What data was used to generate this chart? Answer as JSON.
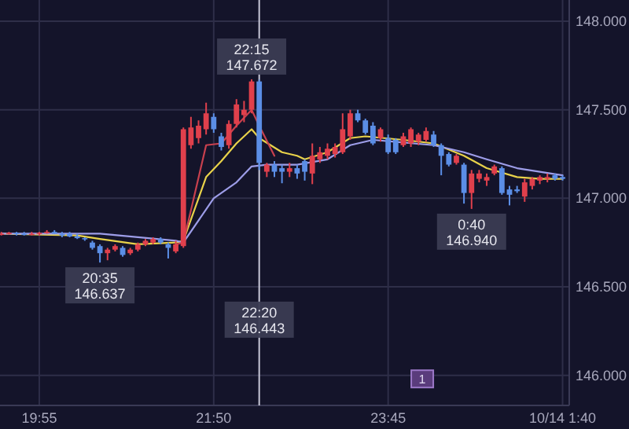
{
  "chart_data": {
    "type": "candlestick",
    "x": [
      19.5,
      19.5833,
      19.6667,
      19.75,
      19.8333,
      19.9167,
      20,
      20.0833,
      20.1667,
      20.25,
      20.3333,
      20.4167,
      20.5,
      20.5833,
      20.6667,
      20.75,
      20.8333,
      20.9167,
      21,
      21.0833,
      21.1667,
      21.25,
      21.3333,
      21.4167,
      21.5,
      21.5833,
      21.6667,
      21.75,
      21.8333,
      21.9167,
      22,
      22.0833,
      22.1667,
      22.25,
      22.3333,
      22.4167,
      22.5,
      22.5833,
      22.6667,
      22.75,
      22.8333,
      22.9167,
      23,
      23.0833,
      23.1667,
      23.25,
      23.3333,
      23.4167,
      23.5,
      23.5833,
      23.6667,
      23.75,
      23.8333,
      23.9167,
      24,
      24.0833,
      24.1667,
      24.25,
      24.3333,
      24.4167,
      24.5,
      24.5833,
      24.6667,
      24.75,
      24.8333,
      24.9167,
      25,
      25.0833,
      25.1667,
      25.25,
      25.3333,
      25.4167,
      25.5,
      25.5833,
      25.6667
    ],
    "ohlc": [
      [
        146.8,
        146.81,
        146.79,
        146.8
      ],
      [
        146.8,
        146.81,
        146.795,
        146.805
      ],
      [
        146.805,
        146.81,
        146.79,
        146.8
      ],
      [
        146.8,
        146.81,
        146.79,
        146.795
      ],
      [
        146.795,
        146.81,
        146.79,
        146.8
      ],
      [
        146.8,
        146.81,
        146.79,
        146.805
      ],
      [
        146.805,
        146.82,
        146.8,
        146.81
      ],
      [
        146.81,
        146.82,
        146.8,
        146.8
      ],
      [
        146.8,
        146.81,
        146.78,
        146.79
      ],
      [
        146.8,
        146.81,
        146.78,
        146.785
      ],
      [
        146.785,
        146.8,
        146.77,
        146.775
      ],
      [
        146.775,
        146.78,
        146.76,
        146.77
      ],
      [
        146.75,
        146.76,
        146.71,
        146.72
      ],
      [
        146.73,
        146.74,
        146.637,
        146.69
      ],
      [
        146.69,
        146.72,
        146.65,
        146.71
      ],
      [
        146.71,
        146.74,
        146.7,
        146.73
      ],
      [
        146.72,
        146.73,
        146.67,
        146.68
      ],
      [
        146.69,
        146.72,
        146.68,
        146.71
      ],
      [
        146.71,
        146.75,
        146.7,
        146.74
      ],
      [
        146.74,
        146.77,
        146.73,
        146.76
      ],
      [
        146.75,
        146.78,
        146.74,
        146.77
      ],
      [
        146.77,
        146.78,
        146.74,
        146.75
      ],
      [
        146.74,
        146.75,
        146.66,
        146.72
      ],
      [
        146.7,
        146.76,
        146.69,
        146.74
      ],
      [
        146.73,
        147.4,
        146.72,
        147.39
      ],
      [
        147.3,
        147.46,
        147.28,
        147.4
      ],
      [
        147.34,
        147.44,
        147.31,
        147.41
      ],
      [
        147.39,
        147.54,
        147.36,
        147.48
      ],
      [
        147.46,
        147.48,
        147.37,
        147.39
      ],
      [
        147.35,
        147.37,
        147.27,
        147.29
      ],
      [
        147.3,
        147.44,
        147.28,
        147.42
      ],
      [
        147.42,
        147.56,
        147.4,
        147.53
      ],
      [
        147.47,
        147.55,
        147.43,
        147.5
      ],
      [
        147.5,
        147.672,
        147.48,
        147.66
      ],
      [
        147.66,
        147.67,
        147.16,
        147.2
      ],
      [
        147.15,
        147.2,
        147.12,
        147.19
      ],
      [
        147.19,
        147.21,
        147.12,
        147.15
      ],
      [
        147.17,
        147.19,
        147.085,
        147.15
      ],
      [
        147.15,
        147.2,
        147.12,
        147.17
      ],
      [
        147.17,
        147.19,
        147.11,
        147.14
      ],
      [
        147.21,
        147.22,
        147.1,
        147.15
      ],
      [
        147.14,
        147.31,
        147.08,
        147.24
      ],
      [
        147.22,
        147.29,
        147.2,
        147.26
      ],
      [
        147.24,
        147.31,
        147.22,
        147.28
      ],
      [
        147.25,
        147.31,
        147.23,
        147.29
      ],
      [
        147.26,
        147.48,
        147.25,
        147.39
      ],
      [
        147.35,
        147.5,
        147.33,
        147.48
      ],
      [
        147.48,
        147.5,
        147.43,
        147.44
      ],
      [
        147.44,
        147.45,
        147.36,
        147.37
      ],
      [
        147.41,
        147.43,
        147.3,
        147.31
      ],
      [
        147.34,
        147.4,
        147.32,
        147.39
      ],
      [
        147.34,
        147.36,
        147.25,
        147.26
      ],
      [
        147.33,
        147.34,
        147.25,
        147.26
      ],
      [
        147.3,
        147.37,
        147.29,
        147.35
      ],
      [
        147.31,
        147.4,
        147.29,
        147.39
      ],
      [
        147.32,
        147.37,
        147.3,
        147.36
      ],
      [
        147.33,
        147.4,
        147.32,
        147.38
      ],
      [
        147.36,
        147.38,
        147.29,
        147.3
      ],
      [
        147.3,
        147.31,
        147.13,
        147.24
      ],
      [
        147.25,
        147.26,
        147.18,
        147.19
      ],
      [
        147.2,
        147.25,
        147.19,
        147.24
      ],
      [
        147.19,
        147.2,
        146.97,
        147.03
      ],
      [
        147.03,
        147.16,
        146.94,
        147.14
      ],
      [
        147.11,
        147.16,
        147.09,
        147.14
      ],
      [
        147.1,
        147.14,
        147.07,
        147.12
      ],
      [
        147.14,
        147.19,
        147.13,
        147.18
      ],
      [
        147.17,
        147.18,
        147.02,
        147.03
      ],
      [
        147.05,
        147.07,
        146.96,
        147.02
      ],
      [
        147.05,
        147.07,
        147.03,
        147.04
      ],
      [
        147.01,
        147.11,
        146.98,
        147.09
      ],
      [
        147.07,
        147.12,
        147.05,
        147.11
      ],
      [
        147.1,
        147.13,
        147.08,
        147.12
      ],
      [
        147.11,
        147.14,
        147.09,
        147.12
      ],
      [
        147.13,
        147.14,
        147.1,
        147.11
      ],
      [
        147.12,
        147.13,
        147.1,
        147.11
      ]
    ],
    "colors": [
      "#e0404c",
      "#e0404c",
      "#5b8ee6",
      "#5b8ee6",
      "#e0404c",
      "#e0404c",
      "#e0404c",
      "#5b8ee6",
      "#5b8ee6",
      "#5b8ee6",
      "#5b8ee6",
      "#5b8ee6",
      "#5b8ee6",
      "#5b8ee6",
      "#e0404c",
      "#e0404c",
      "#5b8ee6",
      "#e0404c",
      "#e0404c",
      "#e0404c",
      "#e0404c",
      "#5b8ee6",
      "#5b8ee6",
      "#e0404c",
      "#e0404c",
      "#e0404c",
      "#e0404c",
      "#e0404c",
      "#5b8ee6",
      "#5b8ee6",
      "#e0404c",
      "#e0404c",
      "#e0404c",
      "#e0404c",
      "#5b8ee6",
      "#e0404c",
      "#5b8ee6",
      "#5b8ee6",
      "#e0404c",
      "#5b8ee6",
      "#5b8ee6",
      "#e0404c",
      "#e0404c",
      "#e0404c",
      "#e0404c",
      "#e0404c",
      "#e0404c",
      "#5b8ee6",
      "#5b8ee6",
      "#5b8ee6",
      "#e0404c",
      "#5b8ee6",
      "#5b8ee6",
      "#e0404c",
      "#e0404c",
      "#e0404c",
      "#e0404c",
      "#5b8ee6",
      "#5b8ee6",
      "#5b8ee6",
      "#e0404c",
      "#5b8ee6",
      "#e0404c",
      "#e0404c",
      "#e0404c",
      "#e0404c",
      "#5b8ee6",
      "#5b8ee6",
      "#5b8ee6",
      "#e0404c",
      "#e0404c",
      "#e0404c",
      "#e0404c",
      "#5b8ee6",
      "#5b8ee6"
    ],
    "series": [
      {
        "type": "line",
        "color": "#e8d24a",
        "x": [
          19.5,
          20.3333,
          20.5833,
          21,
          21.4167,
          21.5,
          21.75,
          21.9167,
          22.0833,
          22.25,
          22.3333,
          22.5833,
          22.75,
          22.8333,
          23.0833,
          23.3333,
          23.5,
          23.9167,
          24.25,
          24.5833,
          24.8333,
          25.1667,
          25.4167,
          25.6667
        ],
        "values": [
          146.8,
          146.79,
          146.77,
          146.74,
          146.75,
          146.76,
          147.12,
          147.21,
          147.31,
          147.39,
          147.34,
          147.26,
          147.24,
          147.22,
          147.26,
          147.34,
          147.35,
          147.33,
          147.31,
          147.24,
          147.17,
          147.12,
          147.11,
          147.11
        ]
      },
      {
        "type": "line",
        "color": "#9d9de8",
        "x": [
          19.5,
          20.5833,
          21,
          21.4167,
          21.5,
          21.8333,
          22.0833,
          22.25,
          22.4167,
          22.75,
          23.0833,
          23.3333,
          23.5833,
          24.25,
          24.5833,
          24.8333,
          25.1667,
          25.4167,
          25.6667
        ],
        "values": [
          146.8,
          146.8,
          146.78,
          146.76,
          146.75,
          147.0,
          147.09,
          147.18,
          147.19,
          147.19,
          147.22,
          147.3,
          147.33,
          147.3,
          147.26,
          147.22,
          147.17,
          147.15,
          147.13
        ]
      },
      {
        "type": "line",
        "color": "#c8404e",
        "x": [
          21.4167,
          21.5,
          21.75,
          21.9167,
          22.0833,
          22.25,
          22.3333,
          22.5
        ],
        "values": [
          146.74,
          146.75,
          147.3,
          147.31,
          147.41,
          147.5,
          147.41,
          147.24
        ]
      }
    ],
    "xlim": [
      19.485,
      25.74
    ],
    "ylim": [
      145.83,
      148.12
    ],
    "xticks": [
      {
        "value": 19.9167,
        "label": "19:55"
      },
      {
        "value": 21.8333,
        "label": "21:50"
      },
      {
        "value": 23.75,
        "label": "23:45"
      },
      {
        "value": 25.6667,
        "label": "10/14 1:40"
      }
    ],
    "yticks": [
      {
        "value": 146,
        "label": "146.000"
      },
      {
        "value": 146.5,
        "label": "146.500"
      },
      {
        "value": 147,
        "label": "147.000"
      },
      {
        "value": 147.5,
        "label": "147.500"
      },
      {
        "value": 148,
        "label": "148.000"
      }
    ],
    "ref_lines": [
      {
        "axis": "x",
        "value": 22.3333,
        "color": "#c8c8d8"
      }
    ],
    "annotations": [
      {
        "text": "20:35\n146.637",
        "x": 20.5833,
        "y": 146.637
      },
      {
        "text": "22:15\n147.672",
        "x": 22.25,
        "y": 147.672
      },
      {
        "text": "22:20\n146.443",
        "x": 22.3333,
        "y": 146.443
      },
      {
        "text": "0:40\n146.940",
        "x": 24.6667,
        "y": 146.94
      },
      {
        "text": "1",
        "x": 24.125,
        "y": 145.98
      }
    ],
    "grid": true
  }
}
